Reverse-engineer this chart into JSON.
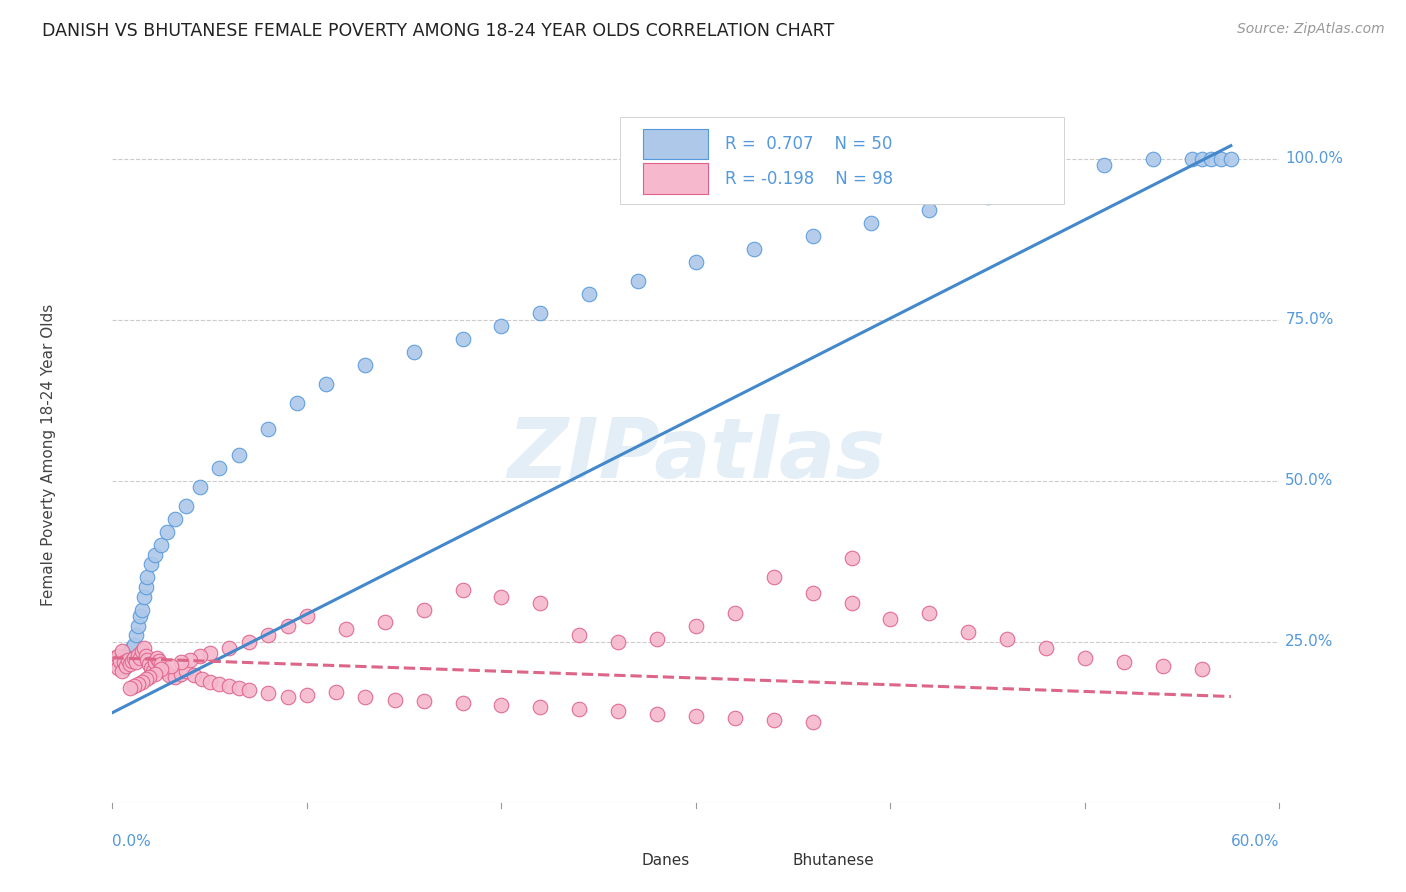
{
  "title": "DANISH VS BHUTANESE FEMALE POVERTY AMONG 18-24 YEAR OLDS CORRELATION CHART",
  "source": "Source: ZipAtlas.com",
  "ylabel": "Female Poverty Among 18-24 Year Olds",
  "danes_R": 0.707,
  "danes_N": 50,
  "bhutanese_R": -0.198,
  "bhutanese_N": 98,
  "danes_color": "#adc8e8",
  "danes_edge_color": "#5599dd",
  "bhutanese_color": "#f5b8cc",
  "bhutanese_edge_color": "#e0608a",
  "danes_line_color": "#4488cc",
  "bhutanese_line_color": "#dd6688",
  "label_color": "#5599dd",
  "watermark": "ZIPatlas",
  "background_color": "#ffffff",
  "grid_color": "#cccccc",
  "danes_scatter_x": [
    0.002,
    0.003,
    0.004,
    0.005,
    0.006,
    0.007,
    0.008,
    0.009,
    0.01,
    0.011,
    0.012,
    0.013,
    0.014,
    0.015,
    0.016,
    0.017,
    0.018,
    0.02,
    0.022,
    0.025,
    0.028,
    0.032,
    0.038,
    0.045,
    0.055,
    0.065,
    0.08,
    0.095,
    0.11,
    0.13,
    0.155,
    0.18,
    0.2,
    0.22,
    0.245,
    0.27,
    0.3,
    0.33,
    0.36,
    0.39,
    0.42,
    0.45,
    0.48,
    0.51,
    0.535,
    0.555,
    0.56,
    0.565,
    0.57,
    0.575
  ],
  "danes_scatter_y": [
    0.22,
    0.215,
    0.218,
    0.225,
    0.21,
    0.222,
    0.23,
    0.235,
    0.24,
    0.245,
    0.26,
    0.275,
    0.29,
    0.3,
    0.32,
    0.335,
    0.35,
    0.37,
    0.385,
    0.4,
    0.42,
    0.44,
    0.46,
    0.49,
    0.52,
    0.54,
    0.58,
    0.62,
    0.65,
    0.68,
    0.7,
    0.72,
    0.74,
    0.76,
    0.79,
    0.81,
    0.84,
    0.86,
    0.88,
    0.9,
    0.92,
    0.94,
    0.97,
    0.99,
    1.0,
    1.0,
    1.0,
    1.0,
    1.0,
    1.0
  ],
  "bhutanese_scatter_x": [
    0.001,
    0.002,
    0.003,
    0.003,
    0.004,
    0.005,
    0.005,
    0.006,
    0.007,
    0.008,
    0.009,
    0.01,
    0.011,
    0.012,
    0.013,
    0.014,
    0.015,
    0.016,
    0.017,
    0.018,
    0.019,
    0.02,
    0.021,
    0.022,
    0.023,
    0.024,
    0.025,
    0.027,
    0.029,
    0.032,
    0.035,
    0.038,
    0.042,
    0.046,
    0.05,
    0.055,
    0.06,
    0.065,
    0.07,
    0.08,
    0.09,
    0.1,
    0.115,
    0.13,
    0.145,
    0.16,
    0.18,
    0.2,
    0.22,
    0.24,
    0.26,
    0.28,
    0.3,
    0.32,
    0.34,
    0.36,
    0.38,
    0.4,
    0.42,
    0.44,
    0.46,
    0.48,
    0.5,
    0.52,
    0.54,
    0.56,
    0.34,
    0.36,
    0.38,
    0.32,
    0.3,
    0.28,
    0.26,
    0.24,
    0.22,
    0.2,
    0.18,
    0.16,
    0.14,
    0.12,
    0.1,
    0.09,
    0.08,
    0.07,
    0.06,
    0.05,
    0.045,
    0.04,
    0.035,
    0.03,
    0.025,
    0.022,
    0.019,
    0.017,
    0.015,
    0.013,
    0.011,
    0.009
  ],
  "bhutanese_scatter_y": [
    0.225,
    0.215,
    0.21,
    0.228,
    0.22,
    0.235,
    0.205,
    0.218,
    0.212,
    0.222,
    0.215,
    0.22,
    0.225,
    0.218,
    0.23,
    0.225,
    0.235,
    0.24,
    0.228,
    0.222,
    0.215,
    0.21,
    0.205,
    0.218,
    0.225,
    0.22,
    0.215,
    0.205,
    0.198,
    0.195,
    0.2,
    0.205,
    0.198,
    0.192,
    0.188,
    0.185,
    0.182,
    0.178,
    0.175,
    0.17,
    0.165,
    0.168,
    0.172,
    0.165,
    0.16,
    0.158,
    0.155,
    0.152,
    0.148,
    0.145,
    0.142,
    0.138,
    0.135,
    0.132,
    0.128,
    0.125,
    0.31,
    0.285,
    0.295,
    0.265,
    0.255,
    0.24,
    0.225,
    0.218,
    0.212,
    0.208,
    0.35,
    0.325,
    0.38,
    0.295,
    0.275,
    0.255,
    0.25,
    0.26,
    0.31,
    0.32,
    0.33,
    0.3,
    0.28,
    0.27,
    0.29,
    0.275,
    0.26,
    0.25,
    0.24,
    0.232,
    0.228,
    0.222,
    0.218,
    0.212,
    0.208,
    0.2,
    0.195,
    0.192,
    0.188,
    0.185,
    0.182,
    0.178
  ]
}
